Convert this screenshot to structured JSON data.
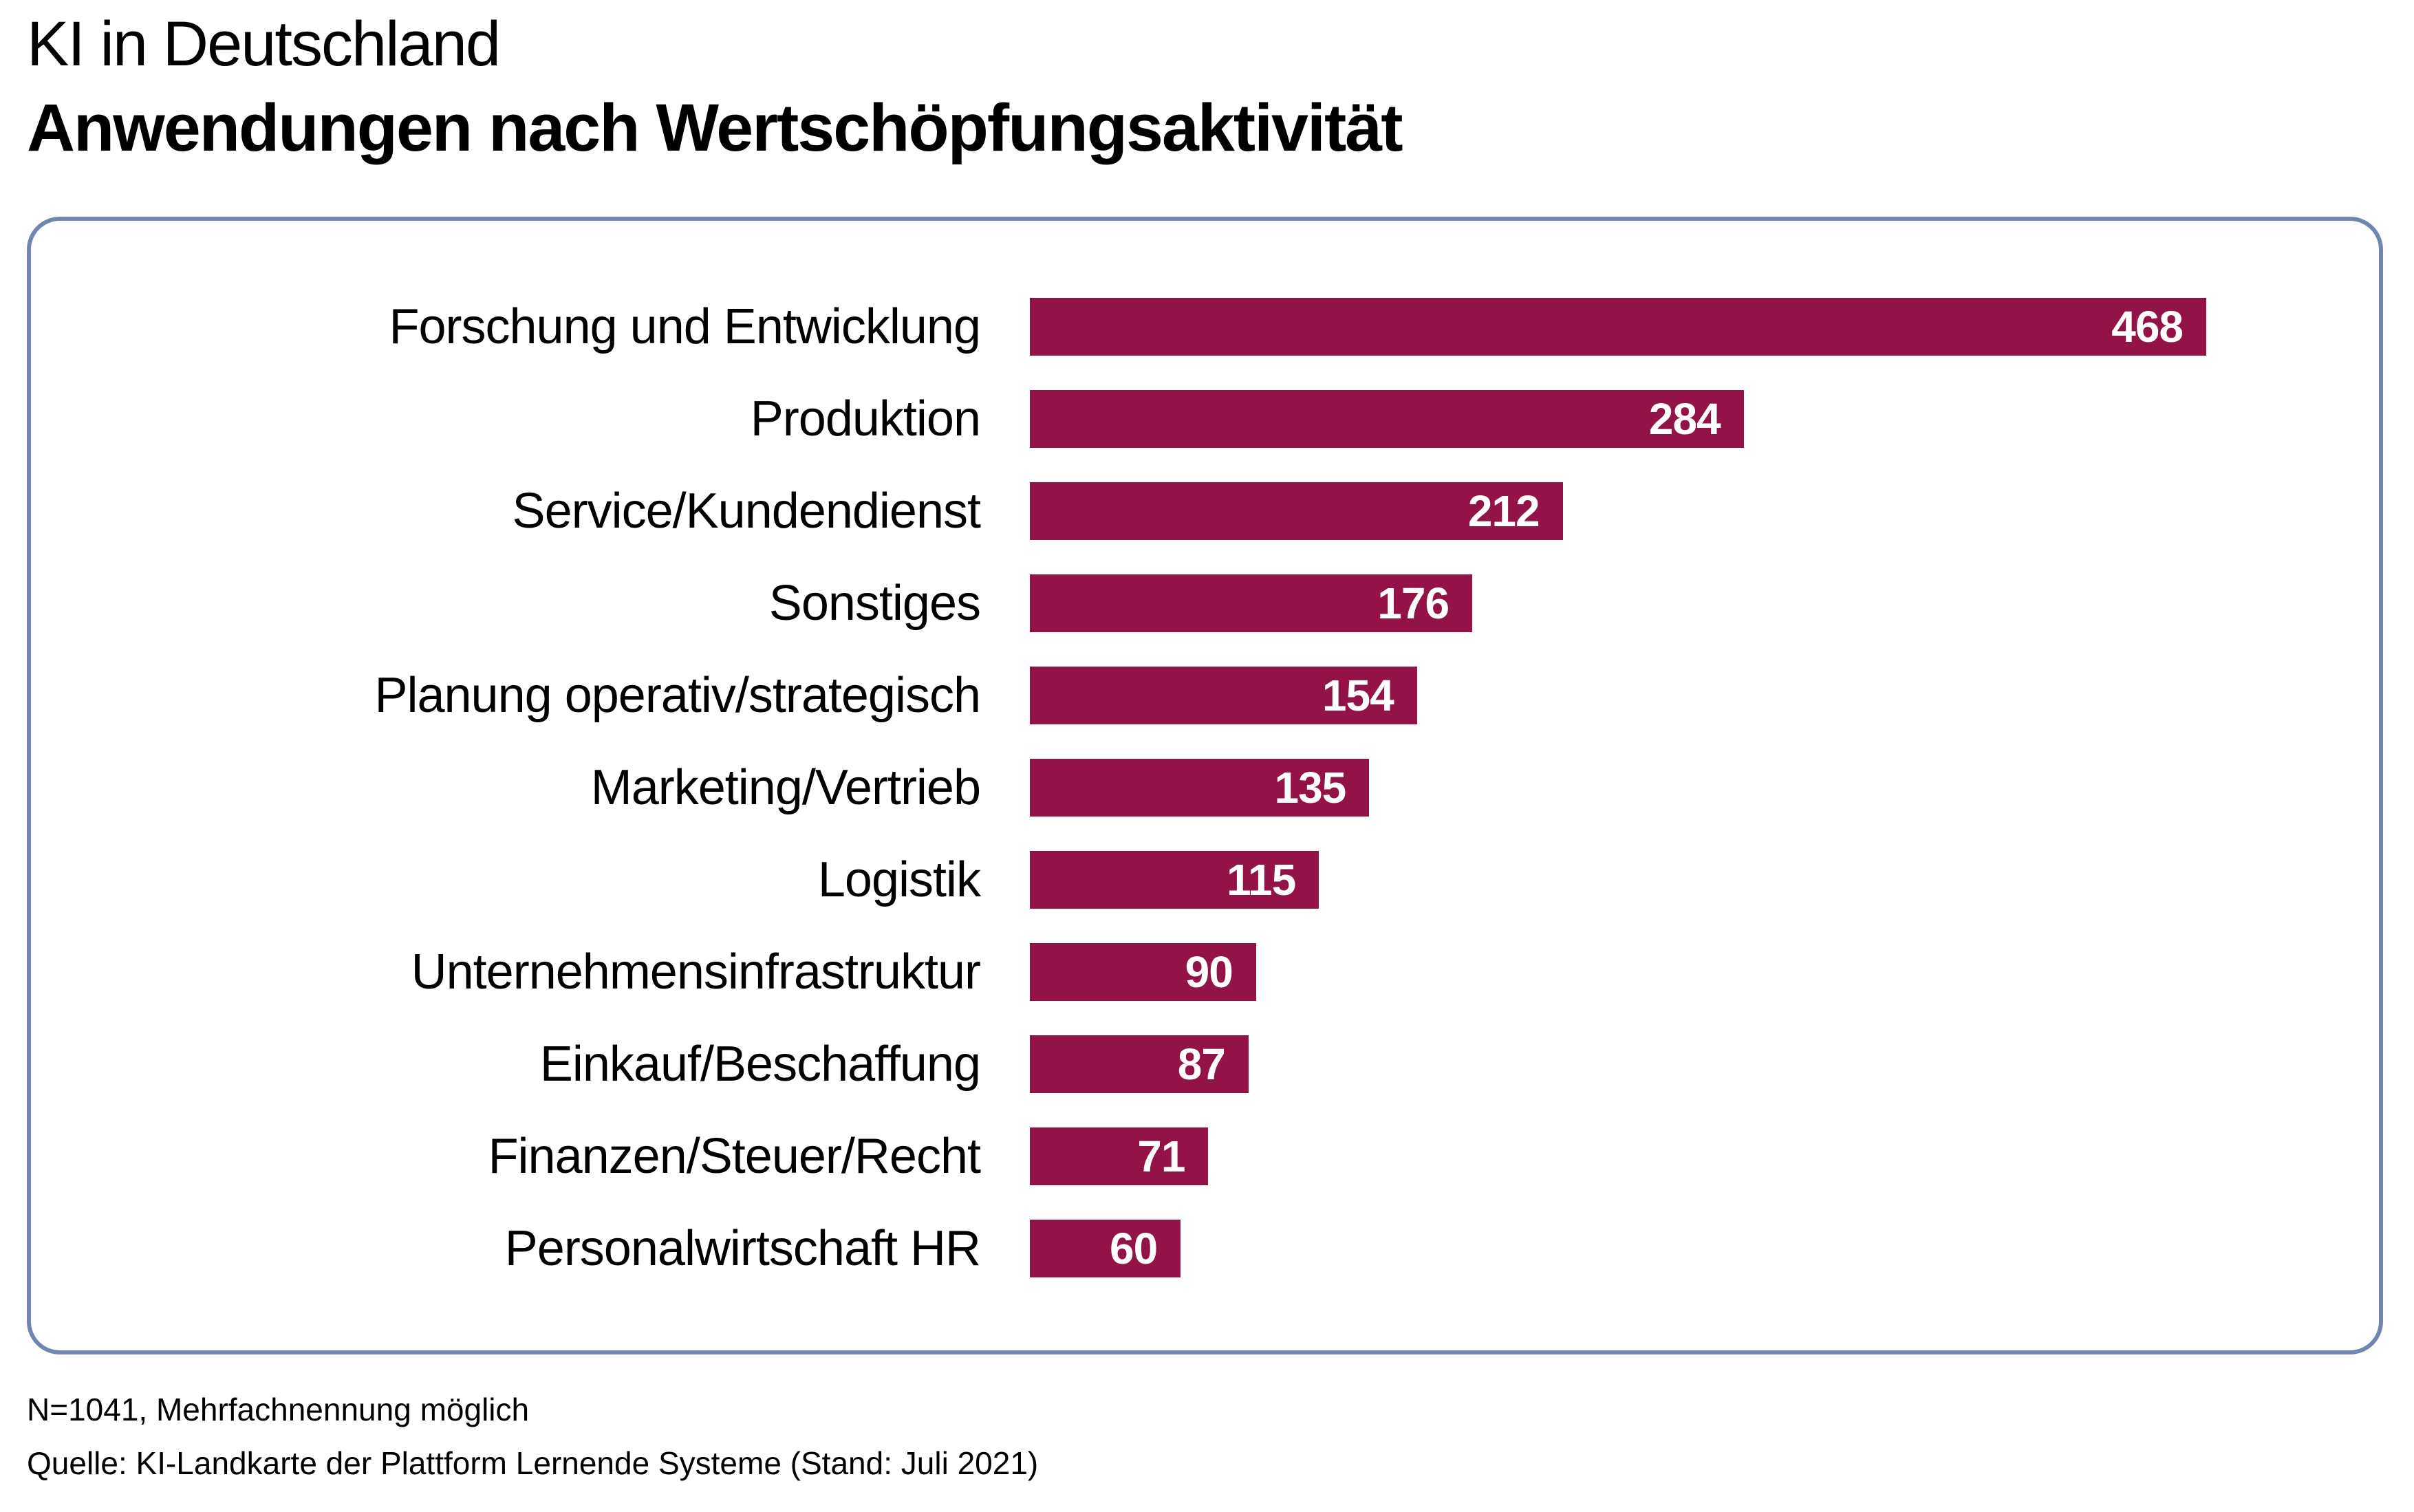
{
  "title": "KI in Deutschland",
  "subtitle": "Anwendungen nach Wertschöpfungsaktivität",
  "footer": {
    "note": "N=1041, Mehrfachnennung möglich",
    "source": "Quelle: KI-Landkarte der Plattform Lernende Systeme (Stand: Juli 2021)"
  },
  "colors": {
    "bar": "#931247",
    "box_border": "#7285b2",
    "value_text": "#ffffff",
    "label_text": "#000000"
  },
  "chart_data": {
    "type": "bar",
    "orientation": "horizontal",
    "title": "KI in Deutschland",
    "subtitle": "Anwendungen nach Wertschöpfungsaktivität",
    "categories": [
      "Forschung und Entwicklung",
      "Produktion",
      "Service/Kundendienst",
      "Sonstiges",
      "Planung operativ/strategisch",
      "Marketing/Vertrieb",
      "Logistik",
      "Unternehmensinfrastruktur",
      "Einkauf/Beschaffung",
      "Finanzen/Steuer/Recht",
      "Personalwirtschaft HR"
    ],
    "values": [
      468,
      284,
      212,
      176,
      154,
      135,
      115,
      90,
      87,
      71,
      60
    ],
    "xlim": [
      0,
      468
    ],
    "value_labels": "inside-end",
    "grid": false,
    "legend": "none"
  }
}
